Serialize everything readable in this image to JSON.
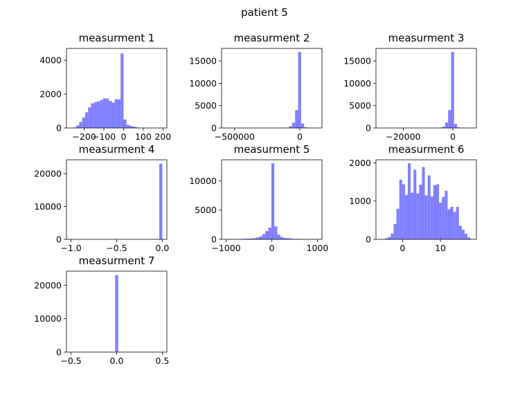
{
  "figure": {
    "title": "patient 5"
  },
  "style": {
    "bar_color": "#8080ff",
    "axis_color": "#000000",
    "background": "#ffffff"
  },
  "chart_data": [
    {
      "type": "bar",
      "title": "measurment 1",
      "xlim": [
        -290,
        220
      ],
      "ylim": [
        0,
        4700
      ],
      "xticks": [
        -200,
        -100,
        0,
        100,
        200
      ],
      "xtick_labels": [
        "−200",
        "−100",
        "0",
        "100",
        "200"
      ],
      "yticks": [
        0,
        2000,
        4000
      ],
      "ytick_labels": [
        "0",
        "2000",
        "4000"
      ],
      "bin_edges": [
        -270,
        -255,
        -240,
        -225,
        -210,
        -195,
        -180,
        -165,
        -150,
        -135,
        -120,
        -105,
        -90,
        -75,
        -60,
        -45,
        -30,
        -15,
        0,
        15,
        30,
        45,
        60,
        75,
        90,
        105,
        120,
        135,
        150,
        165,
        180,
        195
      ],
      "counts": [
        5,
        30,
        150,
        350,
        620,
        930,
        1220,
        1460,
        1530,
        1570,
        1650,
        1760,
        1740,
        1600,
        1500,
        1700,
        1680,
        4400,
        500,
        190,
        120,
        80,
        40,
        15,
        8,
        5,
        3,
        2,
        1,
        1,
        0
      ]
    },
    {
      "type": "bar",
      "title": "measurment 2",
      "xlim": [
        -600000,
        170000
      ],
      "ylim": [
        0,
        17800
      ],
      "xticks": [
        -500000,
        0
      ],
      "xtick_labels": [
        "−500000",
        "0"
      ],
      "yticks": [
        0,
        5000,
        10000,
        15000
      ],
      "ytick_labels": [
        "0",
        "5000",
        "10000",
        "15000"
      ],
      "bin_edges": [
        -565000,
        -542000,
        -519000,
        -496000,
        -473000,
        -450000,
        -427000,
        -404000,
        -381000,
        -358000,
        -335000,
        -312000,
        -289000,
        -266000,
        -243000,
        -220000,
        -197000,
        -174000,
        -151000,
        -128000,
        -105000,
        -82000,
        -59000,
        -36000,
        -13000,
        10000,
        33000,
        56000,
        79000,
        102000,
        125000
      ],
      "counts": [
        0,
        0,
        0,
        0,
        0,
        0,
        0,
        0,
        0,
        0,
        0,
        0,
        0,
        0,
        0,
        0,
        0,
        0,
        0,
        5,
        100,
        400,
        1200,
        4000,
        17000,
        1000,
        150,
        30,
        5,
        0
      ]
    },
    {
      "type": "bar",
      "title": "measurment 3",
      "xlim": [
        -31000,
        9500
      ],
      "ylim": [
        0,
        17800
      ],
      "xticks": [
        -20000,
        0
      ],
      "xtick_labels": [
        "−20000",
        "0"
      ],
      "yticks": [
        0,
        5000,
        10000,
        15000
      ],
      "ytick_labels": [
        "0",
        "5000",
        "10000",
        "15000"
      ],
      "bin_edges": [
        -29500,
        -28300,
        -27100,
        -25900,
        -24700,
        -23500,
        -22300,
        -21100,
        -19900,
        -18700,
        -17500,
        -16300,
        -15100,
        -13900,
        -12700,
        -11500,
        -10300,
        -9100,
        -7900,
        -6700,
        -5500,
        -4300,
        -3100,
        -1900,
        -700,
        500,
        1700,
        2900,
        4100,
        5300,
        6500
      ],
      "counts": [
        0,
        0,
        0,
        0,
        0,
        0,
        0,
        0,
        0,
        0,
        0,
        0,
        0,
        0,
        0,
        0,
        0,
        0,
        0,
        5,
        100,
        300,
        1200,
        4000,
        17000,
        900,
        150,
        30,
        5,
        0
      ]
    },
    {
      "type": "bar",
      "title": "measurment 4",
      "xlim": [
        -1.05,
        0.05
      ],
      "ylim": [
        0,
        24200
      ],
      "xticks": [
        -1.0,
        -0.5,
        0.0
      ],
      "xtick_labels": [
        "−1.0",
        "−0.5",
        "0.0"
      ],
      "yticks": [
        0,
        10000,
        20000
      ],
      "ytick_labels": [
        "0",
        "10000",
        "20000"
      ],
      "bin_edges": [
        -0.0333,
        0.0
      ],
      "counts": [
        23000
      ]
    },
    {
      "type": "bar",
      "title": "measurment 5",
      "xlim": [
        -1100,
        1100
      ],
      "ylim": [
        0,
        13600
      ],
      "xticks": [
        -1000,
        0,
        1000
      ],
      "xtick_labels": [
        "−1000",
        "0",
        "1000"
      ],
      "yticks": [
        0,
        5000,
        10000
      ],
      "ytick_labels": [
        "0",
        "5000",
        "10000"
      ],
      "bin_edges": [
        -1000,
        -934,
        -868,
        -802,
        -736,
        -670,
        -604,
        -538,
        -472,
        -406,
        -340,
        -274,
        -208,
        -142,
        -76,
        -10,
        56,
        122,
        188,
        254,
        320,
        386,
        452,
        518,
        584,
        650,
        716,
        782,
        848,
        914,
        980
      ],
      "counts": [
        10,
        20,
        30,
        40,
        60,
        80,
        100,
        120,
        150,
        200,
        300,
        500,
        900,
        1400,
        2000,
        13000,
        2200,
        800,
        400,
        250,
        200,
        150,
        100,
        80,
        60,
        40,
        30,
        20,
        10,
        5
      ]
    },
    {
      "type": "bar",
      "title": "measurment 6",
      "xlim": [
        -7,
        19.5
      ],
      "ylim": [
        0,
        2080
      ],
      "xticks": [
        0,
        10
      ],
      "xtick_labels": [
        "0",
        "10"
      ],
      "yticks": [
        0,
        1000,
        2000
      ],
      "ytick_labels": [
        "0",
        "1000",
        "2000"
      ],
      "bin_edges": [
        -4.6,
        -3.85,
        -3.1,
        -2.35,
        -1.6,
        -0.85,
        -0.1,
        0.65,
        1.4,
        2.15,
        2.9,
        3.65,
        4.4,
        5.15,
        5.9,
        6.65,
        7.4,
        8.15,
        8.9,
        9.65,
        10.4,
        11.15,
        11.9,
        12.65,
        13.4,
        14.15,
        14.9,
        15.65,
        16.4,
        17.15,
        17.9
      ],
      "counts": [
        30,
        60,
        150,
        400,
        800,
        1560,
        1440,
        1160,
        1990,
        1220,
        1820,
        1200,
        1430,
        1890,
        1150,
        1670,
        1120,
        1420,
        1440,
        960,
        1110,
        1270,
        790,
        850,
        720,
        850,
        360,
        250,
        150,
        50
      ]
    },
    {
      "type": "bar",
      "title": "measurment 7",
      "xlim": [
        -0.55,
        0.55
      ],
      "ylim": [
        0,
        24200
      ],
      "xticks": [
        -0.5,
        0.0,
        0.5
      ],
      "xtick_labels": [
        "−0.5",
        "0.0",
        "0.5"
      ],
      "yticks": [
        0,
        10000,
        20000
      ],
      "ytick_labels": [
        "0",
        "10000",
        "20000"
      ],
      "bin_edges": [
        -0.0167,
        0.0167
      ],
      "counts": [
        23000
      ]
    }
  ]
}
